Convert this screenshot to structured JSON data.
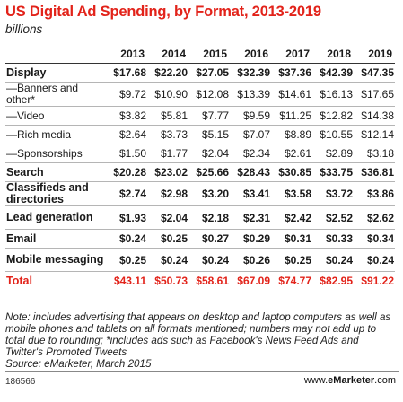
{
  "title": "US Digital Ad Spending, by Format, 2013-2019",
  "subtitle": "billions",
  "chart_data": {
    "type": "table",
    "columns": [
      "2013",
      "2014",
      "2015",
      "2016",
      "2017",
      "2018",
      "2019"
    ],
    "rows": [
      {
        "label": "Display",
        "kind": "main",
        "values": [
          "$17.68",
          "$22.20",
          "$27.05",
          "$32.39",
          "$37.36",
          "$42.39",
          "$47.35"
        ]
      },
      {
        "label": "—Banners and other*",
        "kind": "sub",
        "values": [
          "$9.72",
          "$10.90",
          "$12.08",
          "$13.39",
          "$14.61",
          "$16.13",
          "$17.65"
        ]
      },
      {
        "label": "—Video",
        "kind": "sub",
        "values": [
          "$3.82",
          "$5.81",
          "$7.77",
          "$9.59",
          "$11.25",
          "$12.82",
          "$14.38"
        ]
      },
      {
        "label": "—Rich media",
        "kind": "sub",
        "values": [
          "$2.64",
          "$3.73",
          "$5.15",
          "$7.07",
          "$8.89",
          "$10.55",
          "$12.14"
        ]
      },
      {
        "label": "—Sponsorships",
        "kind": "sub",
        "values": [
          "$1.50",
          "$1.77",
          "$2.04",
          "$2.34",
          "$2.61",
          "$2.89",
          "$3.18"
        ]
      },
      {
        "label": "Search",
        "kind": "main",
        "values": [
          "$20.28",
          "$23.02",
          "$25.66",
          "$28.43",
          "$30.85",
          "$33.75",
          "$36.81"
        ]
      },
      {
        "label": "Classifieds and directories",
        "kind": "main",
        "values": [
          "$2.74",
          "$2.98",
          "$3.20",
          "$3.41",
          "$3.58",
          "$3.72",
          "$3.86"
        ]
      },
      {
        "label": "Lead generation",
        "kind": "main",
        "values": [
          "$1.93",
          "$2.04",
          "$2.18",
          "$2.31",
          "$2.42",
          "$2.52",
          "$2.62"
        ]
      },
      {
        "label": "Email",
        "kind": "main",
        "values": [
          "$0.24",
          "$0.25",
          "$0.27",
          "$0.29",
          "$0.31",
          "$0.33",
          "$0.34"
        ]
      },
      {
        "label": "Mobile messaging",
        "kind": "main",
        "values": [
          "$0.25",
          "$0.24",
          "$0.24",
          "$0.26",
          "$0.25",
          "$0.24",
          "$0.24"
        ]
      }
    ],
    "total": {
      "label": "Total",
      "values": [
        "$43.11",
        "$50.73",
        "$58.61",
        "$67.09",
        "$74.77",
        "$82.95",
        "$91.22"
      ]
    }
  },
  "note": "Note: includes advertising that appears on desktop and laptop computers as well as mobile phones and tablets on all formats mentioned; numbers may not add up to total due to rounding; *includes ads such as Facebook's News Feed Ads and Twitter's Promoted Tweets",
  "source": "Source: eMarketer, March 2015",
  "footer": {
    "id": "186566",
    "brand_prefix": "www.",
    "brand_name": "eMarketer",
    "brand_suffix": ".com"
  },
  "colors": {
    "accent": "#e2231a"
  }
}
